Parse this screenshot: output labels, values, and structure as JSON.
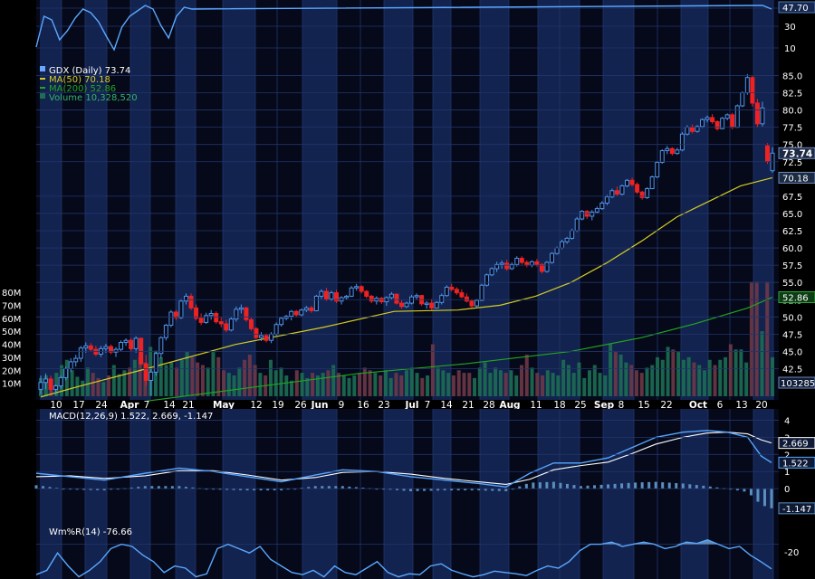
{
  "theme": {
    "background": "#000000",
    "panel": "#05091a",
    "band": "#13234f",
    "grid": "#22356a",
    "axis_text": "#ffffff",
    "up": "#4f93e8",
    "down": "#ee2222",
    "ma50": "#d4cc24",
    "ma200": "#23a51f",
    "volume_up": "#1d6e52",
    "volume_down": "#6e3846",
    "macd": "#56a6ff",
    "signal": "#ffffff",
    "histogram": "#5a8fbe",
    "williams": "#5aa8ff",
    "williams_fill": "#6f9bc5"
  },
  "chart_data": {
    "type": "candlestick",
    "symbol": "GDX",
    "price_legend": {
      "main": "GDX (Daily) 73.74",
      "ma50": "MA(50) 70.18",
      "ma200": "MA(200) 52.86",
      "volume": "Volume 10,328,520"
    },
    "price_axis": {
      "ticks": [
        "85.0",
        "82.5",
        "80.0",
        "77.5",
        "75.0",
        "72.5",
        "67.5",
        "65.0",
        "62.5",
        "60.0",
        "57.5",
        "55.0",
        "52.5",
        "50.0",
        "47.5",
        "45.0",
        "42.5"
      ],
      "range": [
        38.5,
        86.5
      ],
      "badges": {
        "last": "73.74",
        "ma50": "70.18",
        "ma200": "52.86"
      }
    },
    "volume_axis": {
      "ticks": [
        "80M",
        "70M",
        "60M",
        "50M",
        "40M",
        "30M",
        "20M",
        "10M"
      ],
      "max": 80,
      "badge": "10328520"
    },
    "x_axis_labels": [
      "10",
      "17",
      "24",
      "Apr",
      "7",
      "14",
      "21",
      "May",
      "12",
      "19",
      "26",
      "Jun",
      "9",
      "16",
      "23",
      "Jul",
      "7",
      "14",
      "21",
      "28",
      "Aug",
      "11",
      "18",
      "25",
      "Sep",
      "8",
      "15",
      "22",
      "Oct",
      "6",
      "13",
      "20"
    ],
    "bold_labels": [
      "Apr",
      "May",
      "Jun",
      "Jul",
      "Aug",
      "Sep",
      "Oct"
    ],
    "candles": [
      [
        39.5,
        41.5,
        38.8,
        40.5
      ],
      [
        40.5,
        41.8,
        39.5,
        41.0
      ],
      [
        41.0,
        41.5,
        39.0,
        39.5
      ],
      [
        39.5,
        40.2,
        38.7,
        40.0
      ],
      [
        40.0,
        41.5,
        39.6,
        41.2
      ],
      [
        41.2,
        42.8,
        40.8,
        42.5
      ],
      [
        42.5,
        44.0,
        42.0,
        43.5
      ],
      [
        43.5,
        44.5,
        42.8,
        44.0
      ],
      [
        44.0,
        45.8,
        43.5,
        45.5
      ],
      [
        45.5,
        46.3,
        44.8,
        45.8
      ],
      [
        45.8,
        46.2,
        45.0,
        45.3
      ],
      [
        45.3,
        45.8,
        44.3,
        44.6
      ],
      [
        44.6,
        45.8,
        44.2,
        45.4
      ],
      [
        45.4,
        46.1,
        44.8,
        45.7
      ],
      [
        45.7,
        46.0,
        44.6,
        44.9
      ],
      [
        44.9,
        45.6,
        44.2,
        45.3
      ],
      [
        45.3,
        46.6,
        45.0,
        46.3
      ],
      [
        46.3,
        46.9,
        45.8,
        46.6
      ],
      [
        46.6,
        46.9,
        45.0,
        45.4
      ],
      [
        45.4,
        47.2,
        44.8,
        46.9
      ],
      [
        46.9,
        47.0,
        43.0,
        43.2
      ],
      [
        43.2,
        44.5,
        40.0,
        40.8
      ],
      [
        40.8,
        42.5,
        38.6,
        42.0
      ],
      [
        42.0,
        45.0,
        41.5,
        44.7
      ],
      [
        44.7,
        47.2,
        44.0,
        47.0
      ],
      [
        47.0,
        49.0,
        46.6,
        48.8
      ],
      [
        48.8,
        51.0,
        48.5,
        50.7
      ],
      [
        50.7,
        51.0,
        49.5,
        49.9
      ],
      [
        49.9,
        52.6,
        49.7,
        52.3
      ],
      [
        52.3,
        53.4,
        51.8,
        53.0
      ],
      [
        53.0,
        53.4,
        51.0,
        51.3
      ],
      [
        51.3,
        51.8,
        49.5,
        49.8
      ],
      [
        49.8,
        50.5,
        48.8,
        49.2
      ],
      [
        49.2,
        50.6,
        49.0,
        50.2
      ],
      [
        50.2,
        51.0,
        49.6,
        50.5
      ],
      [
        50.5,
        50.8,
        49.0,
        49.3
      ],
      [
        49.3,
        50.0,
        48.5,
        49.0
      ],
      [
        49.0,
        49.6,
        47.8,
        48.1
      ],
      [
        48.1,
        50.0,
        47.9,
        49.7
      ],
      [
        49.7,
        51.5,
        49.3,
        51.1
      ],
      [
        51.1,
        51.8,
        50.5,
        51.3
      ],
      [
        51.3,
        51.5,
        49.3,
        49.6
      ],
      [
        49.6,
        49.9,
        48.0,
        48.3
      ],
      [
        48.3,
        48.5,
        46.8,
        47.0
      ],
      [
        47.0,
        47.8,
        46.5,
        47.3
      ],
      [
        47.3,
        47.6,
        46.3,
        46.6
      ],
      [
        46.6,
        47.8,
        46.2,
        47.5
      ],
      [
        47.5,
        49.2,
        47.3,
        48.9
      ],
      [
        48.9,
        50.0,
        48.6,
        49.8
      ],
      [
        49.8,
        50.3,
        49.5,
        50.1
      ],
      [
        50.1,
        51.0,
        49.5,
        50.8
      ],
      [
        50.8,
        51.0,
        50.0,
        50.3
      ],
      [
        50.3,
        51.2,
        50.1,
        51.0
      ],
      [
        51.0,
        51.6,
        50.7,
        51.3
      ],
      [
        51.3,
        51.6,
        50.6,
        50.9
      ],
      [
        50.9,
        53.2,
        50.8,
        53.0
      ],
      [
        53.0,
        54.0,
        52.6,
        53.7
      ],
      [
        53.7,
        54.2,
        52.3,
        52.6
      ],
      [
        52.6,
        53.8,
        52.3,
        53.5
      ],
      [
        53.5,
        53.9,
        52.0,
        52.3
      ],
      [
        52.3,
        53.0,
        51.8,
        52.8
      ],
      [
        52.8,
        53.2,
        52.5,
        53.0
      ],
      [
        53.0,
        54.5,
        52.9,
        54.2
      ],
      [
        54.2,
        54.8,
        53.8,
        54.4
      ],
      [
        54.4,
        54.6,
        53.4,
        53.7
      ],
      [
        53.7,
        53.9,
        52.7,
        53.0
      ],
      [
        53.0,
        53.2,
        52.0,
        52.3
      ],
      [
        52.3,
        53.0,
        51.8,
        52.7
      ],
      [
        52.7,
        52.9,
        51.9,
        52.2
      ],
      [
        52.2,
        53.0,
        51.6,
        52.8
      ],
      [
        52.8,
        53.6,
        52.5,
        53.3
      ],
      [
        53.3,
        53.4,
        51.8,
        52.0
      ],
      [
        52.0,
        52.4,
        51.2,
        51.5
      ],
      [
        51.5,
        52.2,
        51.3,
        52.0
      ],
      [
        52.0,
        53.2,
        51.8,
        52.9
      ],
      [
        52.9,
        53.4,
        52.5,
        53.1
      ],
      [
        53.1,
        53.2,
        51.6,
        51.9
      ],
      [
        51.9,
        52.3,
        51.2,
        52.0
      ],
      [
        52.0,
        52.6,
        51.0,
        51.3
      ],
      [
        51.3,
        52.3,
        51.2,
        52.1
      ],
      [
        52.1,
        53.4,
        51.8,
        53.1
      ],
      [
        53.1,
        54.6,
        52.9,
        54.3
      ],
      [
        54.3,
        54.8,
        53.7,
        54.0
      ],
      [
        54.0,
        54.3,
        53.2,
        53.5
      ],
      [
        53.5,
        54.0,
        52.7,
        52.9
      ],
      [
        52.9,
        53.4,
        52.1,
        52.3
      ],
      [
        52.3,
        52.5,
        51.3,
        51.6
      ],
      [
        51.6,
        52.6,
        51.4,
        52.4
      ],
      [
        52.4,
        54.8,
        52.3,
        54.6
      ],
      [
        54.6,
        56.3,
        54.4,
        56.1
      ],
      [
        56.1,
        57.2,
        55.9,
        57.0
      ],
      [
        57.0,
        58.0,
        56.5,
        57.6
      ],
      [
        57.6,
        58.2,
        57.0,
        57.8
      ],
      [
        57.8,
        58.3,
        56.7,
        57.0
      ],
      [
        57.0,
        57.9,
        56.8,
        57.6
      ],
      [
        57.6,
        58.8,
        57.3,
        58.5
      ],
      [
        58.5,
        58.8,
        57.6,
        57.9
      ],
      [
        57.9,
        58.2,
        57.2,
        57.5
      ],
      [
        57.5,
        58.2,
        57.2,
        58.0
      ],
      [
        58.0,
        58.4,
        57.3,
        57.6
      ],
      [
        57.6,
        57.8,
        56.3,
        56.6
      ],
      [
        56.6,
        58.1,
        56.4,
        57.9
      ],
      [
        57.9,
        59.4,
        57.7,
        59.2
      ],
      [
        59.2,
        60.2,
        59.0,
        60.0
      ],
      [
        60.0,
        61.2,
        59.8,
        60.9
      ],
      [
        60.9,
        61.6,
        60.6,
        61.4
      ],
      [
        61.4,
        62.8,
        61.2,
        62.5
      ],
      [
        62.5,
        64.5,
        62.3,
        64.2
      ],
      [
        64.2,
        65.5,
        64.0,
        65.3
      ],
      [
        65.3,
        65.5,
        64.2,
        64.6
      ],
      [
        64.6,
        65.5,
        64.0,
        65.2
      ],
      [
        65.2,
        66.0,
        65.0,
        65.7
      ],
      [
        65.7,
        66.8,
        65.5,
        66.5
      ],
      [
        66.5,
        67.7,
        66.2,
        67.4
      ],
      [
        67.4,
        68.6,
        67.2,
        68.3
      ],
      [
        68.3,
        68.9,
        67.5,
        67.8
      ],
      [
        67.8,
        69.2,
        67.6,
        69.0
      ],
      [
        69.0,
        70.0,
        68.8,
        69.8
      ],
      [
        69.8,
        70.2,
        68.9,
        69.2
      ],
      [
        69.2,
        69.5,
        67.8,
        68.1
      ],
      [
        68.1,
        68.3,
        67.0,
        67.3
      ],
      [
        67.3,
        68.8,
        67.1,
        68.6
      ],
      [
        68.6,
        70.5,
        68.5,
        70.3
      ],
      [
        70.3,
        72.6,
        70.1,
        72.4
      ],
      [
        72.4,
        74.3,
        72.2,
        74.1
      ],
      [
        74.1,
        74.8,
        73.6,
        74.4
      ],
      [
        74.4,
        74.6,
        73.4,
        73.7
      ],
      [
        73.7,
        74.5,
        73.5,
        74.2
      ],
      [
        74.2,
        76.8,
        74.0,
        76.5
      ],
      [
        76.5,
        77.8,
        76.3,
        77.5
      ],
      [
        77.5,
        77.9,
        76.6,
        76.9
      ],
      [
        76.9,
        77.8,
        76.7,
        77.6
      ],
      [
        77.6,
        78.8,
        77.4,
        78.6
      ],
      [
        78.6,
        79.2,
        78.2,
        78.9
      ],
      [
        78.9,
        79.4,
        78.0,
        78.3
      ],
      [
        78.3,
        78.5,
        77.0,
        77.3
      ],
      [
        77.3,
        79.0,
        77.2,
        78.8
      ],
      [
        78.8,
        79.5,
        78.5,
        79.3
      ],
      [
        79.3,
        79.6,
        77.2,
        77.5
      ],
      [
        77.5,
        80.8,
        77.4,
        80.6
      ],
      [
        80.6,
        82.7,
        80.4,
        82.5
      ],
      [
        82.5,
        85.2,
        82.2,
        84.7
      ],
      [
        84.7,
        84.9,
        80.5,
        81.0
      ],
      [
        81.0,
        81.6,
        77.5,
        78.0
      ],
      [
        78.0,
        81.2,
        77.6,
        80.3
      ],
      [
        74.8,
        75.2,
        72.2,
        72.6
      ],
      [
        71.2,
        74.6,
        70.9,
        73.74
      ]
    ],
    "ma50": [
      [
        0,
        38.4
      ],
      [
        12,
        40.1
      ],
      [
        30,
        42.5
      ],
      [
        55,
        46.0
      ],
      [
        80,
        48.5
      ],
      [
        100,
        50.8
      ],
      [
        118,
        51.0
      ],
      [
        130,
        51.7
      ],
      [
        140,
        53.0
      ],
      [
        150,
        55.0
      ],
      [
        160,
        57.8
      ],
      [
        170,
        61.0
      ],
      [
        180,
        64.5
      ],
      [
        190,
        67.0
      ],
      [
        198,
        69.0
      ],
      [
        207,
        70.18
      ]
    ],
    "ma200": [
      [
        30,
        37.8
      ],
      [
        60,
        39.8
      ],
      [
        90,
        41.8
      ],
      [
        120,
        43.2
      ],
      [
        150,
        45.0
      ],
      [
        170,
        47.0
      ],
      [
        185,
        49.0
      ],
      [
        200,
        51.3
      ],
      [
        207,
        52.86
      ]
    ],
    "volume": [
      14,
      16,
      10,
      18,
      24,
      28,
      20,
      15,
      12,
      22,
      18,
      14,
      11,
      16,
      24,
      17,
      20,
      22,
      28,
      30,
      26,
      38,
      35,
      30,
      24,
      26,
      22,
      28,
      34,
      30,
      26,
      24,
      22,
      34,
      30,
      20,
      18,
      16,
      22,
      28,
      32,
      24,
      18,
      16,
      28,
      20,
      22,
      16,
      12,
      20,
      18,
      14,
      18,
      16,
      18,
      20,
      24,
      18,
      16,
      14,
      16,
      18,
      22,
      20,
      18,
      16,
      20,
      14,
      18,
      16,
      20,
      22,
      18,
      14,
      16,
      40,
      22,
      20,
      18,
      16,
      20,
      18,
      18,
      14,
      22,
      26,
      18,
      22,
      20,
      18,
      20,
      16,
      24,
      32,
      22,
      18,
      16,
      20,
      18,
      16,
      28,
      24,
      18,
      26,
      14,
      20,
      24,
      18,
      16,
      40,
      34,
      32,
      26,
      24,
      20,
      18,
      22,
      24,
      30,
      28,
      38,
      36,
      34,
      28,
      30,
      26,
      24,
      20,
      28,
      24,
      28,
      30,
      40,
      36,
      36,
      26,
      88,
      88,
      50,
      88,
      30
    ],
    "volume_colors": "mixed",
    "macd": {
      "label": "MACD(12,26,9) 1.522, 2.669, -1.147",
      "ticks": [
        "4",
        "3",
        "2",
        "1",
        "0"
      ],
      "range": [
        -2.0,
        4.5
      ],
      "badges": {
        "macd": "1.522",
        "signal": "2.669",
        "histogram": "-1.147"
      },
      "macd_line": [
        [
          0,
          0.9
        ],
        [
          10,
          0.7
        ],
        [
          20,
          0.5
        ],
        [
          32,
          0.9
        ],
        [
          42,
          1.2
        ],
        [
          52,
          1.0
        ],
        [
          62,
          0.7
        ],
        [
          72,
          0.4
        ],
        [
          82,
          0.8
        ],
        [
          90,
          1.1
        ],
        [
          100,
          1.0
        ],
        [
          110,
          0.7
        ],
        [
          120,
          0.5
        ],
        [
          130,
          0.3
        ],
        [
          138,
          0.1
        ],
        [
          145,
          0.9
        ],
        [
          152,
          1.5
        ],
        [
          160,
          1.5
        ],
        [
          168,
          1.8
        ],
        [
          175,
          2.4
        ],
        [
          182,
          3.0
        ],
        [
          190,
          3.3
        ],
        [
          197,
          3.4
        ],
        [
          203,
          3.3
        ],
        [
          209,
          3.0
        ],
        [
          213,
          1.9
        ],
        [
          216,
          1.522
        ]
      ],
      "signal_line": [
        [
          0,
          0.7
        ],
        [
          10,
          0.75
        ],
        [
          20,
          0.6
        ],
        [
          32,
          0.75
        ],
        [
          42,
          1.05
        ],
        [
          52,
          1.05
        ],
        [
          62,
          0.8
        ],
        [
          72,
          0.5
        ],
        [
          82,
          0.65
        ],
        [
          90,
          0.95
        ],
        [
          100,
          1.0
        ],
        [
          110,
          0.85
        ],
        [
          120,
          0.6
        ],
        [
          130,
          0.4
        ],
        [
          138,
          0.25
        ],
        [
          145,
          0.55
        ],
        [
          152,
          1.1
        ],
        [
          160,
          1.35
        ],
        [
          168,
          1.55
        ],
        [
          175,
          2.05
        ],
        [
          182,
          2.6
        ],
        [
          190,
          3.0
        ],
        [
          197,
          3.25
        ],
        [
          203,
          3.3
        ],
        [
          209,
          3.2
        ],
        [
          213,
          2.85
        ],
        [
          216,
          2.669
        ]
      ]
    },
    "williams": {
      "label": "Wm%R(14) -76.66",
      "tick": "-20",
      "values": [
        -90,
        -80,
        -40,
        -70,
        -95,
        -80,
        -60,
        -30,
        -20,
        -25,
        -45,
        -60,
        -85,
        -70,
        -75,
        -95,
        -88,
        -30,
        -20,
        -30,
        -40,
        -25,
        -55,
        -70,
        -85,
        -90,
        -80,
        -95,
        -70,
        -85,
        -90,
        -75,
        -60,
        -85,
        -95,
        -88,
        -90,
        -70,
        -65,
        -80,
        -88,
        -95,
        -90,
        -82,
        -85,
        -88,
        -92,
        -80,
        -70,
        -75,
        -60,
        -35,
        -20,
        -20,
        -15,
        -25,
        -20,
        -15,
        -20,
        -30,
        -25,
        -15,
        -18,
        -10,
        -20,
        -30,
        -25,
        -45,
        -60,
        -76.66
      ]
    }
  }
}
